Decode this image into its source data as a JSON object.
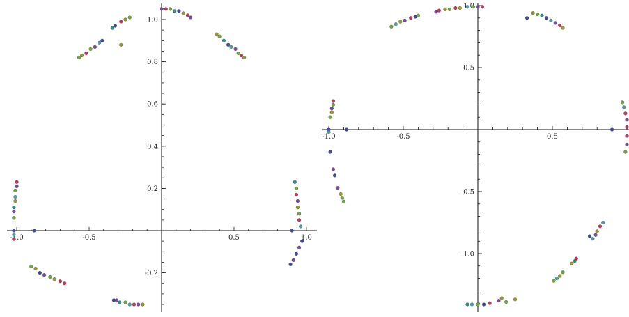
{
  "colors": [
    "#3f4aa0",
    "#2f8f86",
    "#4fa0a8",
    "#6faa3c",
    "#9a9a2c",
    "#c0395c",
    "#7a4aa0",
    "#3c9a6a"
  ],
  "chart_data": [
    {
      "type": "scatter",
      "title": "",
      "xlabel": "",
      "ylabel": "",
      "xlim": [
        -1.07,
        1.07
      ],
      "ylim": [
        -0.38,
        1.08
      ],
      "grid": false,
      "xticks": [
        -1.0,
        -0.5,
        0.5,
        1.0
      ],
      "xtick_labels": [
        "-1.0",
        "-0.5",
        "0.5",
        "1.0"
      ],
      "yticks": [
        -0.2,
        0.2,
        0.4,
        0.6,
        0.8,
        1.0
      ],
      "ytick_labels": [
        "-0.2",
        "0.2",
        "0.4",
        "0.6",
        "0.8",
        "1.0"
      ],
      "points": [
        {
          "x": 0.0,
          "y": 1.05,
          "c": 6
        },
        {
          "x": 0.03,
          "y": 1.05,
          "c": 5
        },
        {
          "x": 0.06,
          "y": 1.05,
          "c": 3
        },
        {
          "x": 0.09,
          "y": 1.04,
          "c": 1
        },
        {
          "x": 0.12,
          "y": 1.04,
          "c": 0
        },
        {
          "x": 0.15,
          "y": 1.03,
          "c": 4
        },
        {
          "x": 0.18,
          "y": 1.02,
          "c": 5
        },
        {
          "x": 0.2,
          "y": 1.01,
          "c": 6
        },
        {
          "x": 0.38,
          "y": 0.93,
          "c": 4
        },
        {
          "x": 0.4,
          "y": 0.92,
          "c": 3
        },
        {
          "x": 0.43,
          "y": 0.9,
          "c": 1
        },
        {
          "x": 0.46,
          "y": 0.88,
          "c": 0
        },
        {
          "x": 0.48,
          "y": 0.87,
          "c": 2
        },
        {
          "x": 0.51,
          "y": 0.86,
          "c": 6
        },
        {
          "x": 0.53,
          "y": 0.84,
          "c": 3
        },
        {
          "x": 0.55,
          "y": 0.83,
          "c": 5
        },
        {
          "x": 0.57,
          "y": 0.82,
          "c": 4
        },
        {
          "x": -0.22,
          "y": 1.01,
          "c": 3
        },
        {
          "x": -0.25,
          "y": 1.0,
          "c": 4
        },
        {
          "x": -0.28,
          "y": 0.99,
          "c": 5
        },
        {
          "x": -0.32,
          "y": 0.97,
          "c": 0
        },
        {
          "x": -0.34,
          "y": 0.96,
          "c": 1
        },
        {
          "x": -0.28,
          "y": 0.88,
          "c": 4
        },
        {
          "x": -0.41,
          "y": 0.9,
          "c": 0
        },
        {
          "x": -0.43,
          "y": 0.89,
          "c": 2
        },
        {
          "x": -0.46,
          "y": 0.87,
          "c": 6
        },
        {
          "x": -0.49,
          "y": 0.86,
          "c": 3
        },
        {
          "x": -0.52,
          "y": 0.84,
          "c": 5
        },
        {
          "x": -0.55,
          "y": 0.83,
          "c": 4
        },
        {
          "x": -0.57,
          "y": 0.82,
          "c": 3
        },
        {
          "x": -1.0,
          "y": 0.23,
          "c": 5
        },
        {
          "x": -1.0,
          "y": 0.21,
          "c": 6
        },
        {
          "x": -1.01,
          "y": 0.19,
          "c": 3
        },
        {
          "x": -1.01,
          "y": 0.16,
          "c": 2
        },
        {
          "x": -1.01,
          "y": 0.14,
          "c": 4
        },
        {
          "x": -1.02,
          "y": 0.11,
          "c": 1
        },
        {
          "x": -1.02,
          "y": 0.09,
          "c": 6
        },
        {
          "x": -1.02,
          "y": 0.06,
          "c": 3
        },
        {
          "x": -1.02,
          "y": 0.0,
          "c": 0
        },
        {
          "x": -1.02,
          "y": -0.02,
          "c": 2
        },
        {
          "x": -1.02,
          "y": -0.04,
          "c": 5
        },
        {
          "x": -0.88,
          "y": 0.0,
          "c": 0
        },
        {
          "x": 0.92,
          "y": 0.23,
          "c": 1
        },
        {
          "x": 0.93,
          "y": 0.2,
          "c": 3
        },
        {
          "x": 0.93,
          "y": 0.17,
          "c": 5
        },
        {
          "x": 0.94,
          "y": 0.14,
          "c": 6
        },
        {
          "x": 0.94,
          "y": 0.11,
          "c": 4
        },
        {
          "x": 0.95,
          "y": 0.08,
          "c": 3
        },
        {
          "x": 0.95,
          "y": 0.05,
          "c": 5
        },
        {
          "x": 0.96,
          "y": 0.02,
          "c": 2
        },
        {
          "x": 0.9,
          "y": 0.0,
          "c": 0
        },
        {
          "x": 0.97,
          "y": -0.05,
          "c": 0
        },
        {
          "x": 0.95,
          "y": -0.08,
          "c": 6
        },
        {
          "x": 0.93,
          "y": -0.11,
          "c": 0
        },
        {
          "x": 0.91,
          "y": -0.14,
          "c": 6
        },
        {
          "x": 0.89,
          "y": -0.16,
          "c": 0
        },
        {
          "x": -0.9,
          "y": -0.17,
          "c": 3
        },
        {
          "x": -0.87,
          "y": -0.18,
          "c": 4
        },
        {
          "x": -0.84,
          "y": -0.2,
          "c": 0
        },
        {
          "x": -0.81,
          "y": -0.21,
          "c": 6
        },
        {
          "x": -0.77,
          "y": -0.22,
          "c": 3
        },
        {
          "x": -0.74,
          "y": -0.23,
          "c": 4
        },
        {
          "x": -0.7,
          "y": -0.24,
          "c": 5
        },
        {
          "x": -0.67,
          "y": -0.25,
          "c": 5
        },
        {
          "x": -0.33,
          "y": -0.33,
          "c": 0
        },
        {
          "x": -0.31,
          "y": -0.33,
          "c": 6
        },
        {
          "x": -0.29,
          "y": -0.34,
          "c": 1
        },
        {
          "x": -0.25,
          "y": -0.34,
          "c": 3
        },
        {
          "x": -0.22,
          "y": -0.35,
          "c": 2
        },
        {
          "x": -0.19,
          "y": -0.35,
          "c": 5
        },
        {
          "x": -0.16,
          "y": -0.35,
          "c": 6
        },
        {
          "x": -0.13,
          "y": -0.35,
          "c": 4
        }
      ]
    },
    {
      "type": "scatter",
      "title": "",
      "xlabel": "",
      "ylabel": "",
      "xlim": [
        -1.02,
        1.02
      ],
      "ylim": [
        -1.42,
        1.02
      ],
      "grid": false,
      "xticks": [
        -1.0,
        -0.5,
        0.5
      ],
      "xtick_labels": [
        "-1.0",
        "-0.5",
        "0.5"
      ],
      "yticks": [
        -1.0,
        -0.5,
        0.5,
        1.0
      ],
      "ytick_labels": [
        "-1.0",
        "-0.5",
        "0.5",
        "1.0"
      ],
      "points": [
        {
          "x": -0.58,
          "y": 0.83,
          "c": 3
        },
        {
          "x": -0.55,
          "y": 0.85,
          "c": 2
        },
        {
          "x": -0.52,
          "y": 0.87,
          "c": 4
        },
        {
          "x": -0.49,
          "y": 0.88,
          "c": 6
        },
        {
          "x": -0.45,
          "y": 0.9,
          "c": 5
        },
        {
          "x": -0.42,
          "y": 0.91,
          "c": 0
        },
        {
          "x": -0.4,
          "y": 0.92,
          "c": 3
        },
        {
          "x": -0.28,
          "y": 0.95,
          "c": 6
        },
        {
          "x": -0.26,
          "y": 0.96,
          "c": 5
        },
        {
          "x": -0.22,
          "y": 0.97,
          "c": 4
        },
        {
          "x": -0.19,
          "y": 0.97,
          "c": 3
        },
        {
          "x": -0.15,
          "y": 0.98,
          "c": 5
        },
        {
          "x": -0.12,
          "y": 0.98,
          "c": 4
        },
        {
          "x": -0.07,
          "y": 0.99,
          "c": 2
        },
        {
          "x": -0.03,
          "y": 0.99,
          "c": 3
        },
        {
          "x": 0.0,
          "y": 0.99,
          "c": 6
        },
        {
          "x": 0.03,
          "y": 0.99,
          "c": 5
        },
        {
          "x": 0.37,
          "y": 0.94,
          "c": 4
        },
        {
          "x": 0.4,
          "y": 0.93,
          "c": 3
        },
        {
          "x": 0.43,
          "y": 0.92,
          "c": 1
        },
        {
          "x": 0.46,
          "y": 0.9,
          "c": 0
        },
        {
          "x": 0.49,
          "y": 0.88,
          "c": 2
        },
        {
          "x": 0.52,
          "y": 0.86,
          "c": 6
        },
        {
          "x": 0.55,
          "y": 0.84,
          "c": 5
        },
        {
          "x": 0.57,
          "y": 0.82,
          "c": 4
        },
        {
          "x": 0.33,
          "y": 0.9,
          "c": 0
        },
        {
          "x": -0.97,
          "y": 0.23,
          "c": 5
        },
        {
          "x": -0.97,
          "y": 0.2,
          "c": 3
        },
        {
          "x": -0.98,
          "y": 0.17,
          "c": 6
        },
        {
          "x": -0.98,
          "y": 0.14,
          "c": 4
        },
        {
          "x": -0.99,
          "y": 0.1,
          "c": 3
        },
        {
          "x": -1.0,
          "y": 0.0,
          "c": 0
        },
        {
          "x": -1.0,
          "y": -0.02,
          "c": 2
        },
        {
          "x": -0.88,
          "y": 0.0,
          "c": 0
        },
        {
          "x": -0.99,
          "y": -0.18,
          "c": 0
        },
        {
          "x": -0.97,
          "y": -0.32,
          "c": 6
        },
        {
          "x": -0.96,
          "y": -0.37,
          "c": 0
        },
        {
          "x": -0.94,
          "y": -0.47,
          "c": 6
        },
        {
          "x": -0.92,
          "y": -0.52,
          "c": 4
        },
        {
          "x": -0.91,
          "y": -0.55,
          "c": 3
        },
        {
          "x": -0.9,
          "y": -0.58,
          "c": 3
        },
        {
          "x": 0.97,
          "y": 0.22,
          "c": 3
        },
        {
          "x": 0.98,
          "y": 0.18,
          "c": 2
        },
        {
          "x": 0.99,
          "y": 0.13,
          "c": 5
        },
        {
          "x": 1.0,
          "y": 0.08,
          "c": 6
        },
        {
          "x": 1.0,
          "y": 0.02,
          "c": 5
        },
        {
          "x": 1.0,
          "y": -0.05,
          "c": 5
        },
        {
          "x": 1.0,
          "y": -0.12,
          "c": 6
        },
        {
          "x": 0.99,
          "y": -0.18,
          "c": 3
        },
        {
          "x": 0.9,
          "y": 0.0,
          "c": 0
        },
        {
          "x": 0.84,
          "y": -0.75,
          "c": 2
        },
        {
          "x": 0.82,
          "y": -0.78,
          "c": 5
        },
        {
          "x": 0.8,
          "y": -0.82,
          "c": 4
        },
        {
          "x": 0.79,
          "y": -0.85,
          "c": 6
        },
        {
          "x": 0.77,
          "y": -0.88,
          "c": 2
        },
        {
          "x": 0.75,
          "y": -0.86,
          "c": 0
        },
        {
          "x": 0.66,
          "y": -1.04,
          "c": 5
        },
        {
          "x": 0.65,
          "y": -1.06,
          "c": 1
        },
        {
          "x": 0.63,
          "y": -1.08,
          "c": 4
        },
        {
          "x": 0.57,
          "y": -1.15,
          "c": 3
        },
        {
          "x": 0.55,
          "y": -1.18,
          "c": 4
        },
        {
          "x": 0.53,
          "y": -1.2,
          "c": 2
        },
        {
          "x": 0.51,
          "y": -1.22,
          "c": 3
        },
        {
          "x": -0.07,
          "y": -1.41,
          "c": 1
        },
        {
          "x": -0.04,
          "y": -1.41,
          "c": 2
        },
        {
          "x": 0.0,
          "y": -1.41,
          "c": 3
        },
        {
          "x": 0.04,
          "y": -1.41,
          "c": 0
        },
        {
          "x": 0.08,
          "y": -1.4,
          "c": 5
        },
        {
          "x": 0.14,
          "y": -1.38,
          "c": 6
        },
        {
          "x": 0.16,
          "y": -1.36,
          "c": 4
        },
        {
          "x": 0.19,
          "y": -1.39,
          "c": 3
        },
        {
          "x": 0.25,
          "y": -1.37,
          "c": 4
        }
      ]
    }
  ]
}
